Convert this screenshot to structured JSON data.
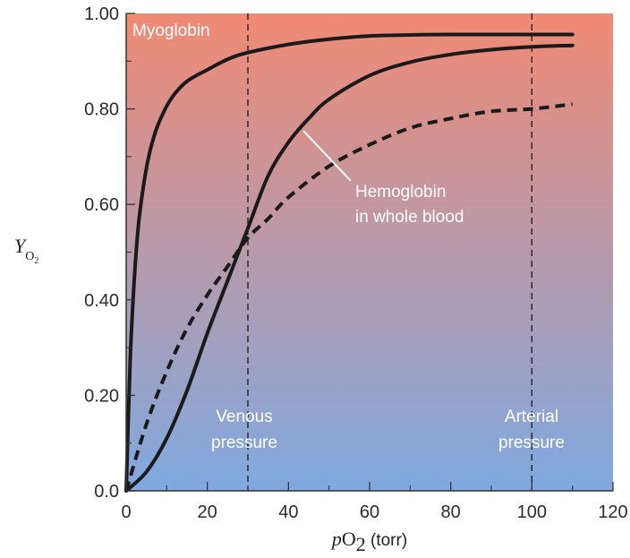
{
  "chart_data": {
    "type": "line",
    "xlabel": {
      "prefix": "p",
      "main": "O",
      "sub": "2",
      "unit": " (torr)"
    },
    "ylabel": {
      "main": "Y",
      "sub": "O",
      "subsub": "2"
    },
    "xlim": [
      0,
      120
    ],
    "ylim": [
      0,
      1.0
    ],
    "x_ticks": [
      0,
      20,
      40,
      60,
      80,
      100,
      120
    ],
    "x_tick_labels": [
      "0",
      "20",
      "40",
      "60",
      "80",
      "100",
      "120"
    ],
    "y_ticks": [
      0,
      0.2,
      0.4,
      0.6,
      0.8,
      1.0
    ],
    "y_tick_labels": [
      "0.0",
      "0.20",
      "0.40",
      "0.60",
      "0.80",
      "1.00"
    ],
    "grid": false,
    "background": {
      "top_color": "#f08a74",
      "bottom_color": "#7fa9e0"
    },
    "series": [
      {
        "name": "Myoglobin",
        "style": "solid",
        "color": "#1a1a1a",
        "x": [
          0,
          1,
          2,
          3,
          4,
          5,
          6,
          7,
          8,
          10,
          12,
          15,
          20,
          25,
          30,
          40,
          50,
          60,
          70,
          80,
          90,
          100,
          110
        ],
        "y": [
          0,
          0.275,
          0.444,
          0.555,
          0.623,
          0.677,
          0.716,
          0.746,
          0.77,
          0.806,
          0.832,
          0.858,
          0.882,
          0.904,
          0.918,
          0.935,
          0.946,
          0.953,
          0.955,
          0.956,
          0.956,
          0.956,
          0.956
        ]
      },
      {
        "name": "Hemoglobin in whole blood",
        "style": "solid",
        "color": "#1a1a1a",
        "x": [
          0,
          5,
          10,
          15,
          20,
          25,
          30,
          35,
          40,
          45,
          50,
          60,
          70,
          80,
          90,
          100,
          110
        ],
        "y": [
          0,
          0.04,
          0.11,
          0.21,
          0.33,
          0.44,
          0.55,
          0.66,
          0.73,
          0.78,
          0.82,
          0.87,
          0.898,
          0.914,
          0.924,
          0.93,
          0.933
        ]
      },
      {
        "name": "",
        "style": "dashed",
        "color": "#1a1a1a",
        "x": [
          0,
          5,
          10,
          15,
          20,
          25,
          30,
          35,
          40,
          50,
          60,
          70,
          80,
          90,
          100,
          110
        ],
        "y": [
          0,
          0.14,
          0.25,
          0.34,
          0.41,
          0.47,
          0.53,
          0.57,
          0.615,
          0.68,
          0.725,
          0.76,
          0.78,
          0.795,
          0.8,
          0.81
        ]
      }
    ],
    "vlines": [
      {
        "x": 30,
        "style": "dashed",
        "label_lines": [
          "Venous",
          "pressure"
        ]
      },
      {
        "x": 100,
        "style": "dashed",
        "label_lines": [
          "Arterial",
          "pressure"
        ]
      }
    ],
    "annotations": {
      "myoglobin": "Myoglobin",
      "hemoglobin_lines": [
        "Hemoglobin",
        "in whole blood"
      ]
    }
  }
}
